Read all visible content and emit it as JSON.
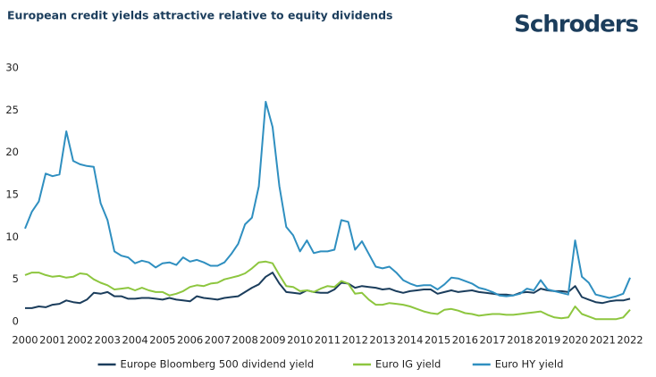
{
  "chart_data": {
    "type": "line",
    "title": "European credit yields attractive relative to equity dividends",
    "logo": "Schroders",
    "x": [
      2000,
      2000.25,
      2000.5,
      2000.75,
      2001,
      2001.25,
      2001.5,
      2001.75,
      2002,
      2002.25,
      2002.5,
      2002.75,
      2003,
      2003.25,
      2003.5,
      2003.75,
      2004,
      2004.25,
      2004.5,
      2004.75,
      2005,
      2005.25,
      2005.5,
      2005.75,
      2006,
      2006.25,
      2006.5,
      2006.75,
      2007,
      2007.25,
      2007.5,
      2007.75,
      2008,
      2008.25,
      2008.5,
      2008.75,
      2009,
      2009.25,
      2009.5,
      2009.75,
      2010,
      2010.25,
      2010.5,
      2010.75,
      2011,
      2011.25,
      2011.5,
      2011.75,
      2012,
      2012.25,
      2012.5,
      2012.75,
      2013,
      2013.25,
      2013.5,
      2013.75,
      2014,
      2014.25,
      2014.5,
      2014.75,
      2015,
      2015.25,
      2015.5,
      2015.75,
      2016,
      2016.25,
      2016.5,
      2016.75,
      2017,
      2017.25,
      2017.5,
      2017.75,
      2018,
      2018.25,
      2018.5,
      2018.75,
      2019,
      2019.25,
      2019.5,
      2019.75,
      2020,
      2020.25,
      2020.5,
      2020.75,
      2021,
      2021.25,
      2021.5,
      2021.75,
      2022
    ],
    "series": [
      {
        "name": "Europe Bloomberg 500 dividend yield",
        "color": "#1b3d5c",
        "values": [
          1.6,
          1.6,
          1.8,
          1.7,
          2.0,
          2.1,
          2.5,
          2.3,
          2.2,
          2.6,
          3.4,
          3.3,
          3.5,
          3.0,
          3.0,
          2.7,
          2.7,
          2.8,
          2.8,
          2.7,
          2.6,
          2.8,
          2.6,
          2.5,
          2.4,
          3.0,
          2.8,
          2.7,
          2.6,
          2.8,
          2.9,
          3.0,
          3.5,
          4.0,
          4.4,
          5.3,
          5.8,
          4.5,
          3.5,
          3.4,
          3.3,
          3.7,
          3.5,
          3.4,
          3.4,
          3.8,
          4.6,
          4.5,
          4.0,
          4.2,
          4.1,
          4.0,
          3.8,
          3.9,
          3.6,
          3.4,
          3.6,
          3.7,
          3.8,
          3.8,
          3.3,
          3.5,
          3.7,
          3.5,
          3.6,
          3.7,
          3.5,
          3.4,
          3.3,
          3.2,
          3.2,
          3.1,
          3.4,
          3.5,
          3.4,
          3.9,
          3.7,
          3.6,
          3.6,
          3.5,
          4.2,
          2.9,
          2.6,
          2.3,
          2.2,
          2.4,
          2.5,
          2.5,
          2.7
        ]
      },
      {
        "name": "Euro IG yield",
        "color": "#8dc63f",
        "values": [
          5.5,
          5.8,
          5.8,
          5.5,
          5.3,
          5.4,
          5.2,
          5.3,
          5.7,
          5.6,
          5.0,
          4.6,
          4.3,
          3.8,
          3.9,
          4.0,
          3.7,
          4.0,
          3.7,
          3.5,
          3.5,
          3.1,
          3.3,
          3.6,
          4.1,
          4.3,
          4.2,
          4.5,
          4.6,
          5.0,
          5.2,
          5.4,
          5.7,
          6.3,
          7.0,
          7.1,
          6.9,
          5.5,
          4.2,
          4.1,
          3.6,
          3.7,
          3.5,
          3.9,
          4.2,
          4.1,
          4.8,
          4.5,
          3.3,
          3.4,
          2.6,
          2.0,
          2.0,
          2.2,
          2.1,
          2.0,
          1.8,
          1.5,
          1.2,
          1.0,
          0.9,
          1.4,
          1.5,
          1.3,
          1.0,
          0.9,
          0.7,
          0.8,
          0.9,
          0.9,
          0.8,
          0.8,
          0.9,
          1.0,
          1.1,
          1.2,
          0.8,
          0.5,
          0.4,
          0.5,
          1.8,
          0.9,
          0.6,
          0.3,
          0.3,
          0.3,
          0.3,
          0.5,
          1.4
        ]
      },
      {
        "name": "Euro HY yield",
        "color": "#2f8fc0",
        "values": [
          11,
          13,
          14.2,
          17.5,
          17.2,
          17.4,
          22.5,
          19,
          18.6,
          18.4,
          18.3,
          14,
          12,
          8.3,
          7.8,
          7.6,
          6.9,
          7.2,
          7,
          6.4,
          6.9,
          7,
          6.7,
          7.6,
          7.1,
          7.3,
          7,
          6.6,
          6.6,
          7,
          8,
          9.2,
          11.5,
          12.3,
          16,
          26,
          23,
          16,
          11.2,
          10.2,
          8.3,
          9.6,
          8.1,
          8.3,
          8.3,
          8.5,
          12,
          11.8,
          8.5,
          9.5,
          8,
          6.5,
          6.3,
          6.5,
          5.8,
          4.9,
          4.5,
          4.2,
          4.3,
          4.3,
          3.8,
          4.4,
          5.2,
          5.1,
          4.8,
          4.5,
          4,
          3.8,
          3.5,
          3.1,
          3,
          3.1,
          3.3,
          3.9,
          3.7,
          4.9,
          3.8,
          3.6,
          3.4,
          3.2,
          9.6,
          5.3,
          4.6,
          3.2,
          3.0,
          2.8,
          3.0,
          3.3,
          5.2
        ]
      }
    ],
    "xlim": [
      2000,
      2022
    ],
    "xticks": [
      2000,
      2001,
      2002,
      2003,
      2004,
      2005,
      2006,
      2007,
      2008,
      2009,
      2010,
      2011,
      2012,
      2013,
      2014,
      2015,
      2016,
      2017,
      2018,
      2019,
      2020,
      2021,
      2022
    ],
    "ylim": [
      0,
      30
    ],
    "yticks": [
      0,
      5,
      10,
      15,
      20,
      25,
      30
    ],
    "grid": false,
    "legend": "bottom"
  }
}
